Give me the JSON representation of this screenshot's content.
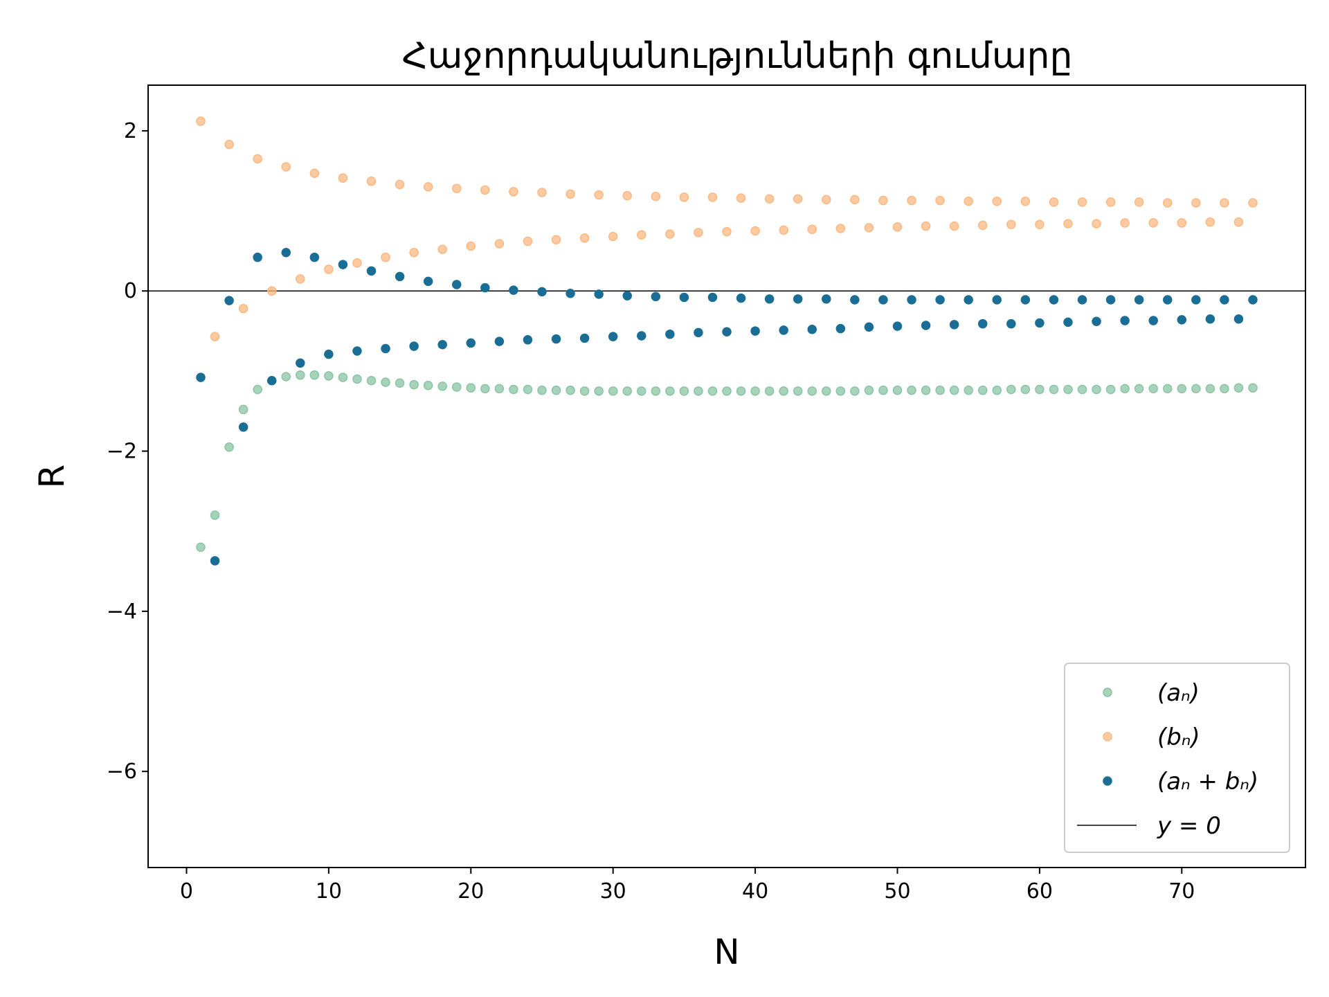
{
  "chart_data": {
    "type": "scatter",
    "title": "Հաջորդականությունների գումարը",
    "xlabel": "N",
    "ylabel": "R",
    "xlim": [
      -2.7,
      78.7
    ],
    "ylim": [
      -7.2,
      2.57
    ],
    "xticks": [
      0,
      10,
      20,
      30,
      40,
      50,
      60,
      70
    ],
    "xtick_labels": [
      "0",
      "10",
      "20",
      "30",
      "40",
      "50",
      "60",
      "70"
    ],
    "yticks": [
      -6,
      -4,
      -2,
      0,
      2
    ],
    "ytick_labels": [
      "−6",
      "−4",
      "−2",
      "0",
      "2"
    ],
    "grid": false,
    "legend_position": "lower-right",
    "series": [
      {
        "name": "(a_n)",
        "legend_label": "(aₙ)",
        "color": "#8ac4a4",
        "x": [
          1,
          2,
          3,
          4,
          5,
          6,
          7,
          8,
          9,
          10,
          11,
          12,
          13,
          14,
          15,
          16,
          17,
          18,
          19,
          20,
          21,
          22,
          23,
          24,
          25,
          26,
          27,
          28,
          29,
          30,
          31,
          32,
          33,
          34,
          35,
          36,
          37,
          38,
          39,
          40,
          41,
          42,
          43,
          44,
          45,
          46,
          47,
          48,
          49,
          50,
          51,
          52,
          53,
          54,
          55,
          56,
          57,
          58,
          59,
          60,
          61,
          62,
          63,
          64,
          65,
          66,
          67,
          68,
          69,
          70,
          71,
          72,
          73,
          74,
          75
        ],
        "y": [
          -3.2,
          -2.8,
          -1.95,
          -1.48,
          -1.23,
          -1.12,
          -1.07,
          -1.05,
          -1.05,
          -1.06,
          -1.08,
          -1.1,
          -1.12,
          -1.14,
          -1.15,
          -1.17,
          -1.18,
          -1.19,
          -1.2,
          -1.21,
          -1.22,
          -1.22,
          -1.23,
          -1.23,
          -1.24,
          -1.24,
          -1.24,
          -1.25,
          -1.25,
          -1.25,
          -1.25,
          -1.25,
          -1.25,
          -1.25,
          -1.25,
          -1.25,
          -1.25,
          -1.25,
          -1.25,
          -1.25,
          -1.25,
          -1.25,
          -1.25,
          -1.25,
          -1.25,
          -1.25,
          -1.25,
          -1.24,
          -1.24,
          -1.24,
          -1.24,
          -1.24,
          -1.24,
          -1.24,
          -1.24,
          -1.24,
          -1.24,
          -1.23,
          -1.23,
          -1.23,
          -1.23,
          -1.23,
          -1.23,
          -1.23,
          -1.23,
          -1.22,
          -1.22,
          -1.22,
          -1.22,
          -1.22,
          -1.22,
          -1.22,
          -1.22,
          -1.21,
          -1.21
        ]
      },
      {
        "name": "(b_n)",
        "legend_label": "(bₙ)",
        "color": "#fdb882",
        "x": [
          1,
          2,
          3,
          4,
          5,
          6,
          7,
          8,
          9,
          10,
          11,
          12,
          13,
          14,
          15,
          16,
          17,
          18,
          19,
          20,
          21,
          22,
          23,
          24,
          25,
          26,
          27,
          28,
          29,
          30,
          31,
          32,
          33,
          34,
          35,
          36,
          37,
          38,
          39,
          40,
          41,
          42,
          43,
          44,
          45,
          46,
          47,
          48,
          49,
          50,
          51,
          52,
          53,
          54,
          55,
          56,
          57,
          58,
          59,
          60,
          61,
          62,
          63,
          64,
          65,
          66,
          67,
          68,
          69,
          70,
          71,
          72,
          73,
          74,
          75
        ],
        "y": [
          2.12,
          -0.57,
          1.83,
          -0.22,
          1.65,
          0.0,
          1.55,
          0.15,
          1.47,
          0.27,
          1.41,
          0.35,
          1.37,
          0.42,
          1.33,
          0.48,
          1.3,
          0.52,
          1.28,
          0.56,
          1.26,
          0.59,
          1.24,
          0.62,
          1.23,
          0.64,
          1.21,
          0.66,
          1.2,
          0.68,
          1.19,
          0.7,
          1.18,
          0.71,
          1.17,
          0.73,
          1.17,
          0.74,
          1.16,
          0.75,
          1.15,
          0.76,
          1.15,
          0.77,
          1.14,
          0.78,
          1.14,
          0.79,
          1.13,
          0.8,
          1.13,
          0.81,
          1.13,
          0.81,
          1.12,
          0.82,
          1.12,
          0.83,
          1.12,
          0.83,
          1.11,
          0.84,
          1.11,
          0.84,
          1.11,
          0.85,
          1.11,
          0.85,
          1.1,
          0.85,
          1.1,
          0.86,
          1.1,
          0.86,
          1.1
        ]
      },
      {
        "name": "(a_n + b_n)",
        "legend_label": "(aₙ + bₙ)",
        "color": "#1a6e96",
        "x": [
          1,
          2,
          3,
          4,
          5,
          6,
          7,
          8,
          9,
          10,
          11,
          12,
          13,
          14,
          15,
          16,
          17,
          18,
          19,
          20,
          21,
          22,
          23,
          24,
          25,
          26,
          27,
          28,
          29,
          30,
          31,
          32,
          33,
          34,
          35,
          36,
          37,
          38,
          39,
          40,
          41,
          42,
          43,
          44,
          45,
          46,
          47,
          48,
          49,
          50,
          51,
          52,
          53,
          54,
          55,
          56,
          57,
          58,
          59,
          60,
          61,
          62,
          63,
          64,
          65,
          66,
          67,
          68,
          69,
          70,
          71,
          72,
          73,
          74,
          75
        ],
        "y": [
          -1.08,
          -3.37,
          -0.12,
          -1.7,
          0.42,
          -1.12,
          0.48,
          -0.9,
          0.42,
          -0.79,
          0.33,
          -0.75,
          0.25,
          -0.72,
          0.18,
          -0.69,
          0.12,
          -0.67,
          0.08,
          -0.65,
          0.04,
          -0.63,
          0.01,
          -0.61,
          -0.01,
          -0.6,
          -0.03,
          -0.59,
          -0.04,
          -0.57,
          -0.06,
          -0.56,
          -0.07,
          -0.54,
          -0.08,
          -0.52,
          -0.08,
          -0.51,
          -0.09,
          -0.5,
          -0.1,
          -0.49,
          -0.1,
          -0.48,
          -0.1,
          -0.47,
          -0.11,
          -0.45,
          -0.11,
          -0.44,
          -0.11,
          -0.43,
          -0.11,
          -0.42,
          -0.11,
          -0.41,
          -0.11,
          -0.41,
          -0.11,
          -0.4,
          -0.11,
          -0.39,
          -0.11,
          -0.38,
          -0.11,
          -0.37,
          -0.11,
          -0.37,
          -0.11,
          -0.36,
          -0.11,
          -0.35,
          -0.11,
          -0.35,
          -0.11
        ]
      }
    ],
    "reference_line": {
      "name": "y = 0",
      "legend_label": "y = 0",
      "y": 0,
      "color": "#000000"
    }
  }
}
